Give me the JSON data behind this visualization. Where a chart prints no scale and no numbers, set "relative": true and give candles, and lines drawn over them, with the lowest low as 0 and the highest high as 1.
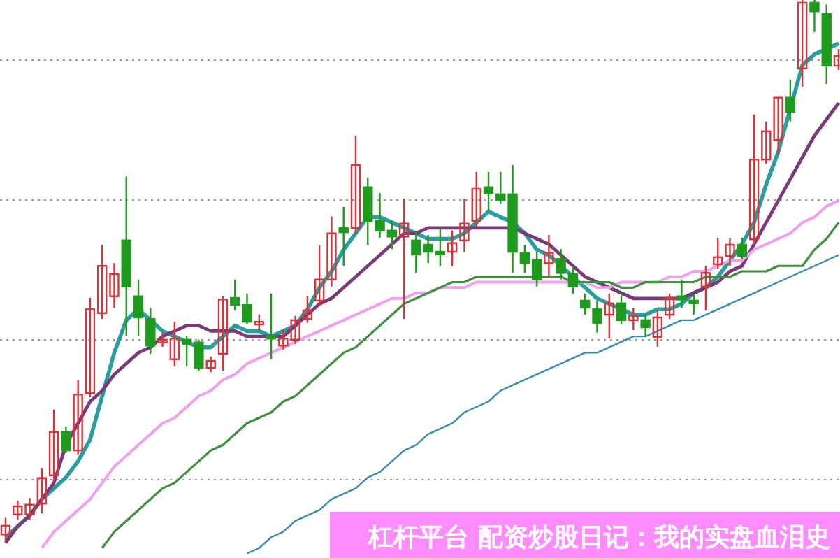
{
  "chart_data": {
    "type": "candlestick",
    "relative": true,
    "grid": "y",
    "title": "杠杆平台 配资炒股日记：我的实盘血泪史",
    "categories": [
      null,
      null,
      null,
      null,
      null,
      null,
      null,
      null,
      null,
      null,
      null,
      null,
      null,
      null,
      null,
      null,
      null,
      null,
      null,
      null,
      null,
      null,
      null,
      null,
      null,
      null,
      null,
      null,
      null,
      null,
      null,
      null,
      null,
      null,
      null,
      null,
      null,
      null,
      null,
      null,
      null,
      null,
      null,
      null,
      null,
      null,
      null,
      null,
      null,
      null,
      null,
      null,
      null,
      null,
      null,
      null,
      null,
      null,
      null,
      null,
      null,
      null,
      null,
      null,
      null,
      null,
      null,
      null,
      null,
      null
    ],
    "ohlc": [
      [
        0.015,
        0.046,
        0,
        0.031
      ],
      [
        0.052,
        0.077,
        0.041,
        0.067
      ],
      [
        0.052,
        0.082,
        0.041,
        0.07
      ],
      [
        0.072,
        0.137,
        0.054,
        0.119
      ],
      [
        0.124,
        0.245,
        0.111,
        0.204
      ],
      [
        0.204,
        0.214,
        0.165,
        0.17
      ],
      [
        0.17,
        0.299,
        0.162,
        0.273
      ],
      [
        0.276,
        0.451,
        0.268,
        0.43
      ],
      [
        0.423,
        0.549,
        0.412,
        0.51
      ],
      [
        0.454,
        0.515,
        0.433,
        0.495
      ],
      [
        0.557,
        0.675,
        0.381,
        0.472
      ],
      [
        0.454,
        0.485,
        0.381,
        0.415
      ],
      [
        0.412,
        0.433,
        0.348,
        0.363
      ],
      [
        0.369,
        0.387,
        0.361,
        0.374
      ],
      [
        0.338,
        0.407,
        0.325,
        0.376
      ],
      [
        0.374,
        0.381,
        0.325,
        0.366
      ],
      [
        0.369,
        0.374,
        0.317,
        0.322
      ],
      [
        0.322,
        0.343,
        0.314,
        0.335
      ],
      [
        0.348,
        0.454,
        0.317,
        0.448
      ],
      [
        0.451,
        0.485,
        0.428,
        0.438
      ],
      [
        0.438,
        0.459,
        0.402,
        0.407
      ],
      [
        0.402,
        0.42,
        0.392,
        0.407
      ],
      [
        0.381,
        0.459,
        0.338,
        0.376
      ],
      [
        0.363,
        0.392,
        0.356,
        0.376
      ],
      [
        0.374,
        0.418,
        0.366,
        0.41
      ],
      [
        0.412,
        0.454,
        0.405,
        0.428
      ],
      [
        0.446,
        0.549,
        0.438,
        0.485
      ],
      [
        0.485,
        0.601,
        0.472,
        0.57
      ],
      [
        0.58,
        0.619,
        0.51,
        0.572
      ],
      [
        0.58,
        0.75,
        0.57,
        0.696
      ],
      [
        0.655,
        0.673,
        0.549,
        0.593
      ],
      [
        0.593,
        0.644,
        0.562,
        0.575
      ],
      [
        0.575,
        0.593,
        0.541,
        0.564
      ],
      [
        0.564,
        0.634,
        0.412,
        0.588
      ],
      [
        0.557,
        0.575,
        0.497,
        0.531
      ],
      [
        0.549,
        0.567,
        0.515,
        0.536
      ],
      [
        0.536,
        0.58,
        0.51,
        0.531
      ],
      [
        0.536,
        0.575,
        0.51,
        0.552
      ],
      [
        0.557,
        0.634,
        0.536,
        0.588
      ],
      [
        0.593,
        0.683,
        0.582,
        0.652
      ],
      [
        0.655,
        0.683,
        0.613,
        0.644
      ],
      [
        0.642,
        0.683,
        0.624,
        0.631
      ],
      [
        0.642,
        0.696,
        0.497,
        0.536
      ],
      [
        0.534,
        0.549,
        0.497,
        0.515
      ],
      [
        0.521,
        0.536,
        0.472,
        0.485
      ],
      [
        0.515,
        0.567,
        0.49,
        0.534
      ],
      [
        0.523,
        0.541,
        0.485,
        0.497
      ],
      [
        0.495,
        0.51,
        0.459,
        0.472
      ],
      [
        0.446,
        0.459,
        0.42,
        0.433
      ],
      [
        0.43,
        0.446,
        0.387,
        0.405
      ],
      [
        0.42,
        0.459,
        0.376,
        0.441
      ],
      [
        0.441,
        0.459,
        0.402,
        0.41
      ],
      [
        0.41,
        0.433,
        0.392,
        0.418
      ],
      [
        0.41,
        0.42,
        0.379,
        0.397
      ],
      [
        0.379,
        0.428,
        0.361,
        0.415
      ],
      [
        0.42,
        0.459,
        0.412,
        0.451
      ],
      [
        0.454,
        0.485,
        0.433,
        0.448
      ],
      [
        0.446,
        0.459,
        0.42,
        0.441
      ],
      [
        0.472,
        0.51,
        0.428,
        0.497
      ],
      [
        0.513,
        0.562,
        0.505,
        0.526
      ],
      [
        0.528,
        0.562,
        0.51,
        0.549
      ],
      [
        0.549,
        0.562,
        0.523,
        0.528
      ],
      [
        0.559,
        0.789,
        0.549,
        0.706
      ],
      [
        0.706,
        0.776,
        0.698,
        0.758
      ],
      [
        0.742,
        0.82,
        0.716,
        0.82
      ],
      [
        0.82,
        0.853,
        0.776,
        0.794
      ],
      [
        0.874,
        1,
        0.84,
        0.995
      ],
      [
        0.995,
        1,
        0.941,
        0.979
      ],
      [
        0.974,
        0.992,
        0.845,
        0.879
      ],
      [
        0.879,
        0.91,
        0.871,
        0.897
      ]
    ],
    "series": [
      {
        "type": "line",
        "color": "#2a9d9d",
        "values": [
          0.01,
          0.03,
          0.05,
          0.08,
          0.1,
          0.12,
          0.15,
          0.19,
          0.27,
          0.35,
          0.41,
          0.43,
          0.41,
          0.39,
          0.38,
          0.37,
          0.36,
          0.36,
          0.38,
          0.4,
          0.39,
          0.39,
          0.38,
          0.39,
          0.4,
          0.43,
          0.47,
          0.5,
          0.54,
          0.57,
          0.6,
          0.6,
          0.59,
          0.58,
          0.57,
          0.56,
          0.56,
          0.56,
          0.57,
          0.59,
          0.61,
          0.6,
          0.59,
          0.57,
          0.54,
          0.53,
          0.51,
          0.49,
          0.47,
          0.45,
          0.44,
          0.43,
          0.42,
          0.42,
          0.43,
          0.43,
          0.44,
          0.46,
          0.47,
          0.49,
          0.52,
          0.55,
          0.59,
          0.66,
          0.72,
          0.8,
          0.88,
          0.9,
          0.91,
          0.92
        ]
      },
      {
        "type": "line",
        "color": "#7a3a7a",
        "values": [
          0.0,
          0.03,
          0.05,
          0.08,
          0.11,
          0.18,
          0.22,
          0.26,
          0.28,
          0.31,
          0.33,
          0.35,
          0.36,
          0.38,
          0.39,
          0.4,
          0.4,
          0.39,
          0.39,
          0.39,
          0.38,
          0.38,
          0.38,
          0.38,
          0.4,
          0.42,
          0.44,
          0.45,
          0.47,
          0.49,
          0.51,
          0.53,
          0.55,
          0.57,
          0.57,
          0.58,
          0.58,
          0.58,
          0.58,
          0.58,
          0.58,
          0.58,
          0.58,
          0.57,
          0.56,
          0.55,
          0.53,
          0.51,
          0.49,
          0.48,
          0.47,
          0.46,
          0.45,
          0.45,
          0.45,
          0.45,
          0.45,
          0.46,
          0.47,
          0.48,
          0.5,
          0.51,
          0.55,
          0.59,
          0.63,
          0.67,
          0.71,
          0.75,
          0.78,
          0.81
        ]
      },
      {
        "type": "line",
        "color": "#f0a0f0",
        "values": [
          null,
          null,
          null,
          -0.01,
          0.02,
          0.04,
          0.06,
          0.08,
          0.11,
          0.14,
          0.16,
          0.18,
          0.2,
          0.22,
          0.23,
          0.25,
          0.27,
          0.28,
          0.3,
          0.31,
          0.33,
          0.34,
          0.35,
          0.36,
          0.37,
          0.38,
          0.39,
          0.4,
          0.41,
          0.42,
          0.43,
          0.44,
          0.45,
          0.45,
          0.46,
          0.46,
          0.47,
          0.47,
          0.47,
          0.48,
          0.48,
          0.48,
          0.48,
          0.48,
          0.48,
          0.48,
          0.48,
          0.48,
          0.48,
          0.47,
          0.47,
          0.48,
          0.48,
          0.48,
          0.48,
          0.49,
          0.49,
          0.5,
          0.5,
          0.51,
          0.52,
          0.52,
          0.54,
          0.55,
          0.56,
          0.57,
          0.59,
          0.6,
          0.62,
          0.63
        ]
      },
      {
        "type": "line",
        "color": "#3f8f3f",
        "values": [
          null,
          null,
          null,
          null,
          null,
          null,
          null,
          null,
          -0.01,
          0.02,
          0.04,
          0.06,
          0.08,
          0.1,
          0.11,
          0.13,
          0.15,
          0.17,
          0.18,
          0.2,
          0.22,
          0.23,
          0.24,
          0.26,
          0.27,
          0.29,
          0.31,
          0.33,
          0.35,
          0.36,
          0.38,
          0.4,
          0.42,
          0.44,
          0.45,
          0.46,
          0.47,
          0.48,
          0.48,
          0.49,
          0.49,
          0.49,
          0.49,
          0.49,
          0.49,
          0.49,
          0.49,
          0.48,
          0.48,
          0.48,
          0.48,
          0.47,
          0.47,
          0.48,
          0.48,
          0.48,
          0.48,
          0.48,
          0.49,
          0.49,
          0.49,
          0.5,
          0.5,
          0.5,
          0.51,
          0.51,
          0.51,
          0.54,
          0.56,
          0.59
        ]
      },
      {
        "type": "line",
        "color": "#3a8ab0",
        "values": [
          null,
          null,
          null,
          null,
          null,
          null,
          null,
          null,
          null,
          null,
          null,
          null,
          null,
          null,
          null,
          null,
          null,
          null,
          null,
          null,
          -0.02,
          -0.01,
          0.01,
          0.02,
          0.04,
          0.05,
          0.06,
          0.08,
          0.09,
          0.1,
          0.12,
          0.13,
          0.15,
          0.17,
          0.18,
          0.2,
          0.21,
          0.22,
          0.24,
          0.25,
          0.26,
          0.28,
          0.29,
          0.3,
          0.31,
          0.32,
          0.33,
          0.34,
          0.35,
          0.35,
          0.36,
          0.37,
          0.38,
          0.38,
          0.39,
          0.4,
          0.41,
          0.41,
          0.42,
          0.43,
          0.44,
          0.45,
          0.46,
          0.47,
          0.48,
          0.49,
          0.5,
          0.51,
          0.52,
          0.53
        ]
      }
    ]
  }
}
